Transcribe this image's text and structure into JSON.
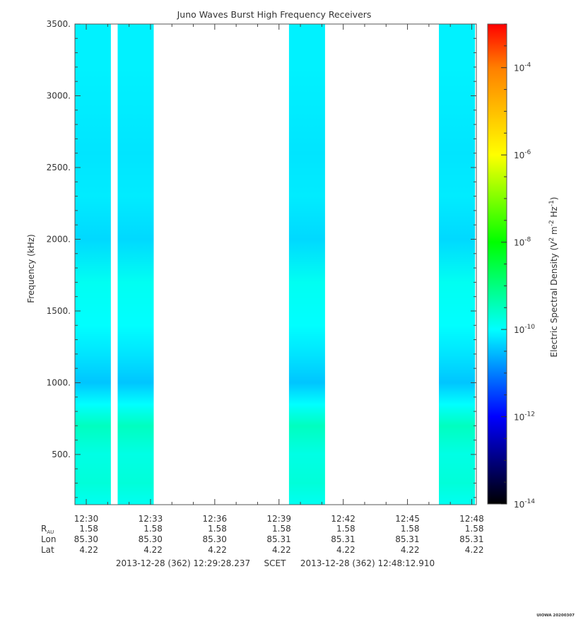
{
  "chart_data": {
    "type": "heatmap",
    "title": "Juno Waves Burst High Frequency Receivers",
    "ylabel": "Frequency (kHz)",
    "ylim": [
      150,
      3500
    ],
    "ytick_values": [
      500,
      1000,
      1500,
      2000,
      2500,
      3000,
      3500
    ],
    "ytick_labels": [
      "500.",
      "1000.",
      "1500.",
      "2000.",
      "2500.",
      "3000.",
      "3500."
    ],
    "x_start": "12:29:28.237",
    "x_end": "12:48:12.910",
    "xtick_labels": [
      "12:30",
      "12:33",
      "12:36",
      "12:39",
      "12:42",
      "12:45",
      "12:48"
    ],
    "xtick_values": [
      "12:30:00",
      "12:33:00",
      "12:36:00",
      "12:39:00",
      "12:42:00",
      "12:45:00",
      "12:48:00"
    ],
    "ephemeris": [
      {
        "label_main": "R",
        "label_sub": "AU",
        "values": [
          "1.58",
          "1.58",
          "1.58",
          "1.58",
          "1.58",
          "1.58",
          "1.58"
        ]
      },
      {
        "label_main": "Lon",
        "label_sub": "",
        "values": [
          "85.30",
          "85.30",
          "85.30",
          "85.31",
          "85.31",
          "85.31",
          "85.31"
        ]
      },
      {
        "label_main": "Lat",
        "label_sub": "",
        "values": [
          "4.22",
          "4.22",
          "4.22",
          "4.22",
          "4.22",
          "4.22",
          "4.22"
        ]
      }
    ],
    "time_footer": {
      "start": "2013-12-28 (362) 12:29:28.237",
      "label": "SCET",
      "end": "2013-12-28 (362) 12:48:12.910"
    },
    "data_blocks": [
      {
        "start": "12:29:28",
        "end": "12:31:09"
      },
      {
        "start": "12:31:28",
        "end": "12:33:09"
      },
      {
        "start": "12:39:28",
        "end": "12:41:09"
      },
      {
        "start": "12:46:28",
        "end": "12:48:09"
      }
    ],
    "spectrum_profile": {
      "frequency_khz": [
        150,
        300,
        500,
        700,
        850,
        1000,
        1200,
        1400,
        1700,
        2000,
        2300,
        2600,
        2900,
        3200,
        3500
      ],
      "log10_density": [
        -9.9,
        -9.7,
        -9.8,
        -9.5,
        -10.0,
        -10.45,
        -10.2,
        -10.0,
        -9.9,
        -10.3,
        -10.15,
        -10.2,
        -10.15,
        -10.1,
        -10.1
      ]
    },
    "colorbar": {
      "label": "Electric Spectral Density (V2 m-2 Hz-1)",
      "log10_min": -14,
      "log10_max": -3,
      "tick_log10": [
        -14,
        -12,
        -10,
        -8,
        -6,
        -4
      ],
      "tick_labels": [
        "10-14",
        "10-12",
        "10-10",
        "10-8",
        "10-6",
        "10-4"
      ],
      "colors": [
        "#000000",
        "#00007f",
        "#0000ff",
        "#007fff",
        "#00ffff",
        "#00ff7f",
        "#00ff00",
        "#7fff00",
        "#ffff00",
        "#ffbf00",
        "#ff7f00",
        "#ff0000"
      ]
    },
    "grid": false
  },
  "footer_stamp": "UIOWA 20200307"
}
